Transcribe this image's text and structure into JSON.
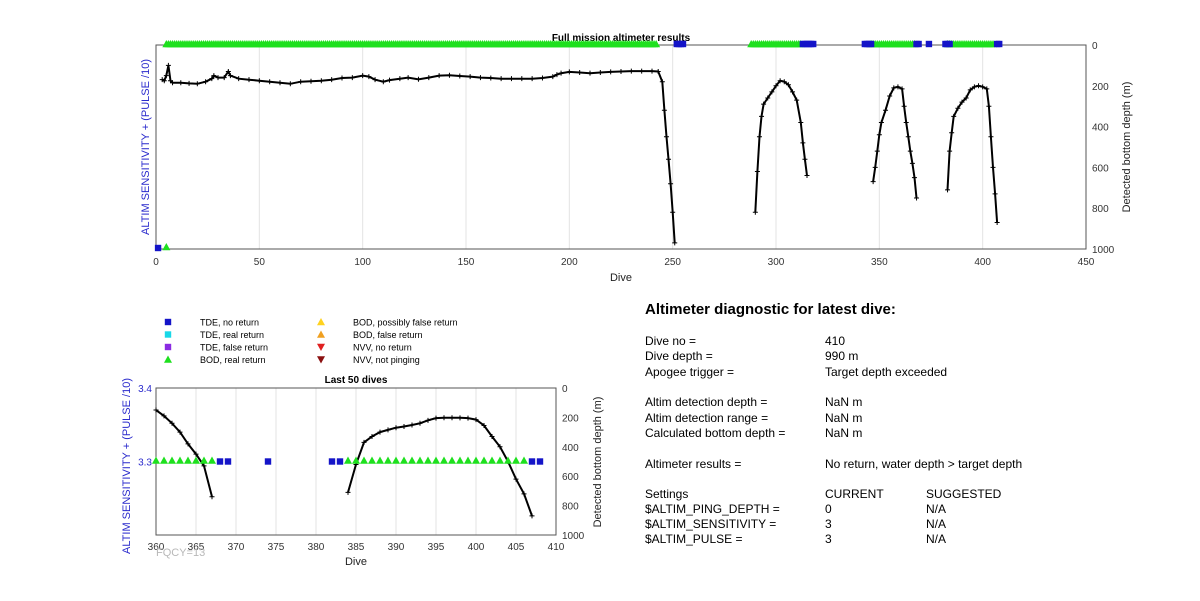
{
  "chart_data": [
    {
      "type": "line",
      "title": "Full mission altimeter results",
      "xlabel": "Dive",
      "ylabel_left": "ALTIM SENSITIVITY + (PULSE /10)",
      "ylabel_right": "Detected bottom depth (m)",
      "xlim": [
        0,
        450
      ],
      "xticks": [
        "0",
        "50",
        "100",
        "150",
        "200",
        "250",
        "300",
        "350",
        "400",
        "450"
      ],
      "ylim_right": [
        0,
        1000
      ],
      "yticks_right": [
        "0",
        "200",
        "400",
        "600",
        "800",
        "1000"
      ],
      "grid": "vertical",
      "series": [
        {
          "name": "Detected bottom depth",
          "color": "#000000",
          "segments": [
            [
              [
                3,
                170
              ],
              [
                4,
                175
              ],
              [
                5,
                150
              ],
              [
                6,
                100
              ],
              [
                7,
                175
              ],
              [
                8,
                185
              ],
              [
                12,
                185
              ],
              [
                16,
                188
              ],
              [
                20,
                190
              ],
              [
                24,
                180
              ],
              [
                27,
                165
              ],
              [
                28,
                150
              ],
              [
                30,
                160
              ],
              [
                33,
                160
              ],
              [
                35,
                130
              ],
              [
                36,
                150
              ],
              [
                40,
                165
              ],
              [
                45,
                170
              ],
              [
                50,
                175
              ],
              [
                55,
                180
              ],
              [
                60,
                185
              ],
              [
                65,
                190
              ],
              [
                70,
                180
              ],
              [
                75,
                178
              ],
              [
                80,
                175
              ],
              [
                85,
                170
              ],
              [
                90,
                162
              ],
              [
                95,
                160
              ],
              [
                100,
                150
              ],
              [
                103,
                155
              ],
              [
                106,
                170
              ],
              [
                110,
                180
              ],
              [
                113,
                172
              ],
              [
                118,
                165
              ],
              [
                122,
                160
              ],
              [
                127,
                168
              ],
              [
                132,
                160
              ],
              [
                137,
                150
              ],
              [
                142,
                148
              ],
              [
                147,
                152
              ],
              [
                152,
                155
              ],
              [
                157,
                160
              ],
              [
                162,
                162
              ],
              [
                167,
                165
              ],
              [
                172,
                165
              ],
              [
                177,
                165
              ],
              [
                182,
                165
              ],
              [
                187,
                162
              ],
              [
                192,
                155
              ],
              [
                194,
                145
              ],
              [
                196,
                138
              ],
              [
                200,
                132
              ],
              [
                205,
                135
              ],
              [
                210,
                138
              ],
              [
                215,
                135
              ],
              [
                220,
                132
              ],
              [
                225,
                130
              ],
              [
                230,
                128
              ],
              [
                235,
                128
              ],
              [
                240,
                128
              ],
              [
                243,
                130
              ],
              [
                245,
                180
              ],
              [
                246,
                320
              ],
              [
                247,
                450
              ],
              [
                248,
                560
              ],
              [
                249,
                680
              ],
              [
                250,
                820
              ],
              [
                251,
                970
              ]
            ],
            [
              [
                290,
                820
              ],
              [
                291,
                620
              ],
              [
                292,
                450
              ],
              [
                293,
                350
              ],
              [
                294,
                290
              ],
              [
                296,
                260
              ],
              [
                298,
                230
              ],
              [
                300,
                200
              ],
              [
                302,
                175
              ],
              [
                304,
                180
              ],
              [
                306,
                195
              ],
              [
                308,
                230
              ],
              [
                310,
                270
              ],
              [
                312,
                380
              ],
              [
                313,
                480
              ],
              [
                314,
                560
              ],
              [
                315,
                640
              ]
            ],
            [
              [
                347,
                670
              ],
              [
                348,
                600
              ],
              [
                349,
                520
              ],
              [
                350,
                440
              ],
              [
                351,
                380
              ],
              [
                353,
                320
              ],
              [
                355,
                250
              ],
              [
                357,
                210
              ],
              [
                359,
                205
              ],
              [
                361,
                215
              ],
              [
                362,
                300
              ],
              [
                363,
                380
              ],
              [
                364,
                450
              ],
              [
                365,
                520
              ],
              [
                366,
                580
              ],
              [
                367,
                650
              ],
              [
                368,
                750
              ]
            ],
            [
              [
                383,
                710
              ],
              [
                384,
                520
              ],
              [
                385,
                430
              ],
              [
                386,
                350
              ],
              [
                388,
                310
              ],
              [
                390,
                280
              ],
              [
                392,
                260
              ],
              [
                394,
                220
              ],
              [
                396,
                205
              ],
              [
                398,
                200
              ],
              [
                400,
                205
              ],
              [
                402,
                215
              ],
              [
                403,
                300
              ],
              [
                404,
                450
              ],
              [
                405,
                600
              ],
              [
                406,
                730
              ],
              [
                407,
                870
              ]
            ]
          ]
        },
        {
          "name": "BOD, real return",
          "color": "#1ee01e",
          "marker": "triangle-up",
          "x_ranges": [
            [
              5,
              242
            ],
            [
              288,
              312
            ],
            [
              346,
              367
            ],
            [
              383,
              405
            ]
          ],
          "y": 0
        },
        {
          "name": "TDE, no return",
          "color": "#1414c8",
          "marker": "square",
          "x": [
            252,
            253,
            254,
            255,
            313,
            314,
            315,
            316,
            317,
            318,
            343,
            344,
            345,
            346,
            368,
            369,
            374,
            382,
            383,
            384,
            407,
            408
          ],
          "y": 0
        }
      ],
      "left_axis_markers": [
        {
          "x": 1,
          "color": "#1414c8",
          "marker": "square"
        },
        {
          "x": 5,
          "color": "#1ee01e",
          "marker": "triangle-up"
        }
      ]
    },
    {
      "type": "line",
      "title": "Last 50 dives",
      "xlabel": "Dive",
      "ylabel_left": "ALTIM SENSITIVITY + (PULSE /10)",
      "ylabel_right": "Detected bottom depth (m)",
      "xlim": [
        360,
        410
      ],
      "xticks": [
        "360",
        "365",
        "370",
        "375",
        "380",
        "385",
        "390",
        "395",
        "400",
        "405",
        "410"
      ],
      "ylim_left": [
        3.2,
        3.4
      ],
      "yticks_left": [
        "3.3",
        "3.4"
      ],
      "ylim_right": [
        0,
        1000
      ],
      "yticks_right": [
        "0",
        "200",
        "400",
        "600",
        "800",
        "1000"
      ],
      "grid": "vertical",
      "annotation": "FQCY=13",
      "series": [
        {
          "name": "Detected bottom depth",
          "color": "#000000",
          "segments": [
            [
              [
                360,
                150
              ],
              [
                361,
                190
              ],
              [
                362,
                240
              ],
              [
                363,
                300
              ],
              [
                364,
                380
              ],
              [
                365,
                450
              ],
              [
                366,
                530
              ],
              [
                367,
                740
              ]
            ],
            [
              [
                384,
                710
              ],
              [
                385,
                520
              ],
              [
                386,
                370
              ],
              [
                387,
                330
              ],
              [
                388,
                300
              ],
              [
                389,
                285
              ],
              [
                390,
                270
              ],
              [
                391,
                262
              ],
              [
                392,
                252
              ],
              [
                393,
                240
              ],
              [
                394,
                220
              ],
              [
                395,
                205
              ],
              [
                396,
                202
              ],
              [
                397,
                202
              ],
              [
                398,
                203
              ],
              [
                399,
                205
              ],
              [
                400,
                215
              ],
              [
                401,
                255
              ],
              [
                402,
                330
              ],
              [
                403,
                400
              ],
              [
                404,
                500
              ],
              [
                405,
                620
              ],
              [
                406,
                720
              ],
              [
                407,
                870
              ]
            ]
          ]
        },
        {
          "name": "BOD, real return",
          "color": "#1ee01e",
          "marker": "triangle-up",
          "x": [
            360,
            361,
            362,
            363,
            364,
            365,
            366,
            367,
            384,
            385,
            386,
            387,
            388,
            389,
            390,
            391,
            392,
            393,
            394,
            395,
            396,
            397,
            398,
            399,
            400,
            401,
            402,
            403,
            404,
            405,
            406
          ],
          "y": 3.3
        },
        {
          "name": "TDE, no return",
          "color": "#1414c8",
          "marker": "square",
          "x": [
            368,
            369,
            374,
            382,
            383,
            407,
            408
          ],
          "y": 3.3
        }
      ]
    }
  ],
  "legend": [
    {
      "label": "TDE, no return",
      "color": "#1414c8",
      "marker": "square"
    },
    {
      "label": "TDE, real return",
      "color": "#18d8e8",
      "marker": "square"
    },
    {
      "label": "TDE, false return",
      "color": "#8a2be2",
      "marker": "square"
    },
    {
      "label": "BOD, real return",
      "color": "#1ee01e",
      "marker": "triangle-up"
    },
    {
      "label": "BOD, possibly false return",
      "color": "#ffd21f",
      "marker": "triangle-up"
    },
    {
      "label": "BOD, false return",
      "color": "#f0a020",
      "marker": "triangle-up"
    },
    {
      "label": "NVV, no return",
      "color": "#e02020",
      "marker": "triangle-down"
    },
    {
      "label": "NVV, not pinging",
      "color": "#8b1010",
      "marker": "triangle-down"
    }
  ],
  "diagnostic": {
    "title": "Altimeter diagnostic for latest dive:",
    "rows": [
      {
        "label": "Dive no =",
        "value": "410"
      },
      {
        "label": "Dive depth =",
        "value": "990 m"
      },
      {
        "label": "Apogee trigger =",
        "value": "Target depth exceeded"
      },
      {
        "label": "Altim detection depth =",
        "value": "NaN m"
      },
      {
        "label": "Altim detection range =",
        "value": "NaN m"
      },
      {
        "label": "Calculated bottom depth =",
        "value": "NaN m"
      },
      {
        "label": "Altimeter results =",
        "value": "No return, water depth > target depth"
      }
    ],
    "settings_header": {
      "label": "Settings",
      "current": "CURRENT",
      "suggested": "SUGGESTED"
    },
    "settings": [
      {
        "label": "$ALTIM_PING_DEPTH =",
        "current": "0",
        "suggested": "N/A"
      },
      {
        "label": "$ALTIM_SENSITIVITY =",
        "current": "3",
        "suggested": "N/A"
      },
      {
        "label": "$ALTIM_PULSE =",
        "current": "3",
        "suggested": "N/A"
      }
    ]
  }
}
